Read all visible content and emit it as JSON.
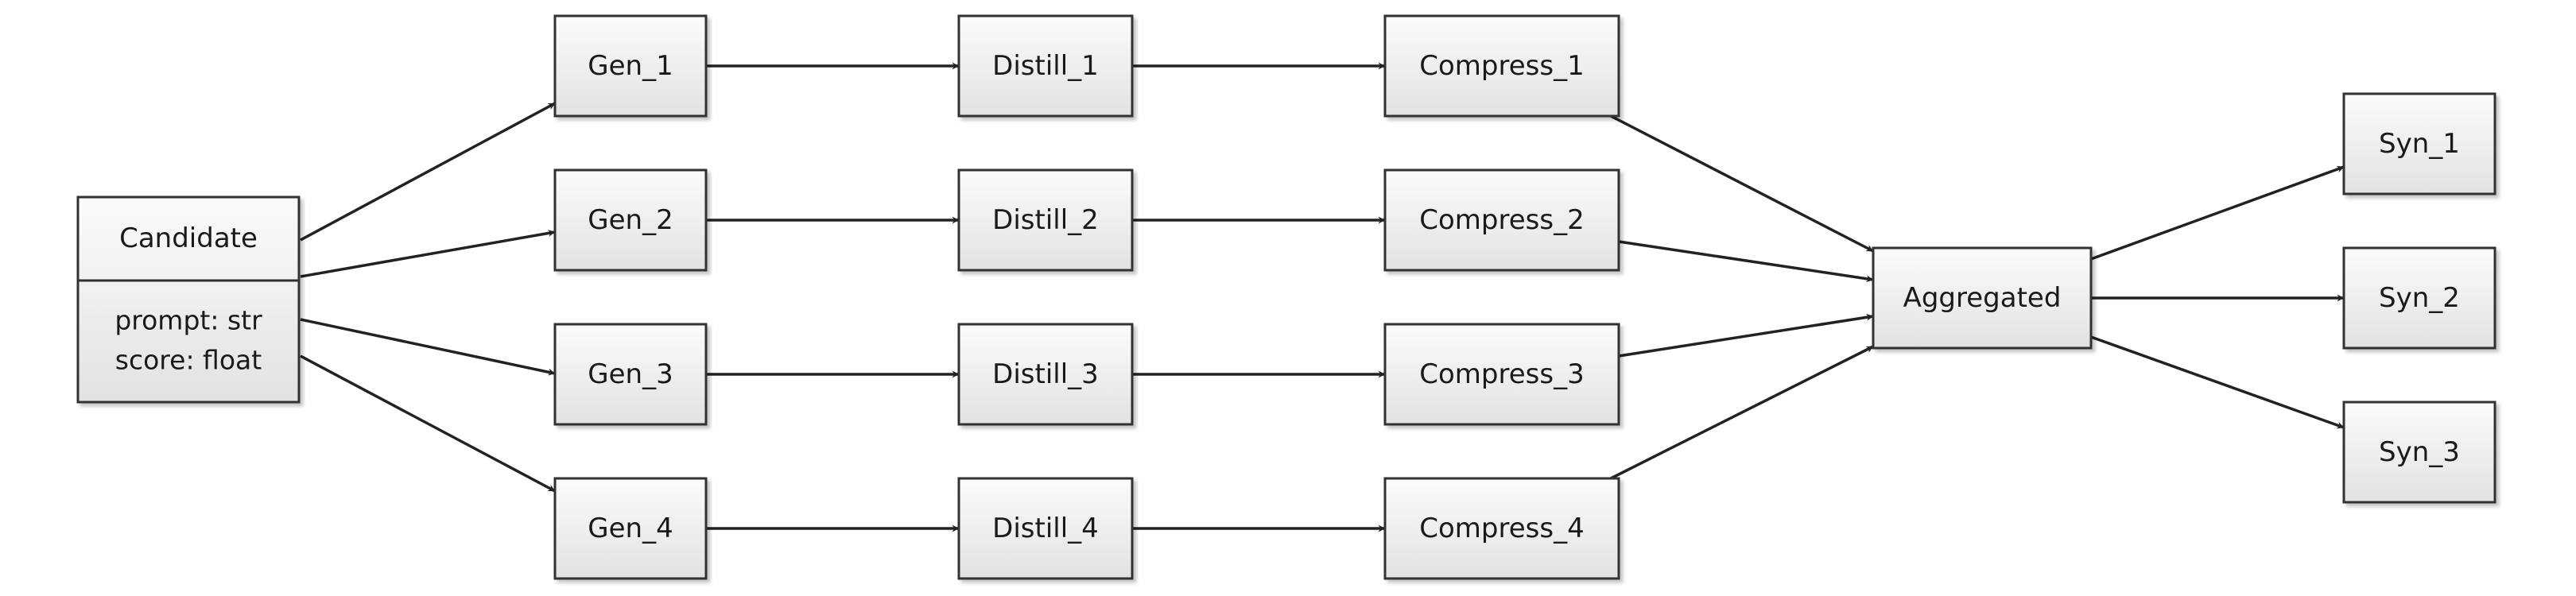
{
  "diagram": {
    "candidate": {
      "title": "Candidate",
      "attributes": [
        "prompt: str",
        "score: float"
      ]
    },
    "nodes": {
      "gen_1": "Gen_1",
      "gen_2": "Gen_2",
      "gen_3": "Gen_3",
      "gen_4": "Gen_4",
      "distill_1": "Distill_1",
      "distill_2": "Distill_2",
      "distill_3": "Distill_3",
      "distill_4": "Distill_4",
      "compress_1": "Compress_1",
      "compress_2": "Compress_2",
      "compress_3": "Compress_3",
      "compress_4": "Compress_4",
      "aggregated": "Aggregated",
      "syn_1": "Syn_1",
      "syn_2": "Syn_2",
      "syn_3": "Syn_3"
    },
    "edges": [
      [
        "candidate",
        "gen_1"
      ],
      [
        "candidate",
        "gen_2"
      ],
      [
        "candidate",
        "gen_3"
      ],
      [
        "candidate",
        "gen_4"
      ],
      [
        "gen_1",
        "distill_1"
      ],
      [
        "gen_2",
        "distill_2"
      ],
      [
        "gen_3",
        "distill_3"
      ],
      [
        "gen_4",
        "distill_4"
      ],
      [
        "distill_1",
        "compress_1"
      ],
      [
        "distill_2",
        "compress_2"
      ],
      [
        "distill_3",
        "compress_3"
      ],
      [
        "distill_4",
        "compress_4"
      ],
      [
        "compress_1",
        "aggregated"
      ],
      [
        "compress_2",
        "aggregated"
      ],
      [
        "compress_3",
        "aggregated"
      ],
      [
        "compress_4",
        "aggregated"
      ],
      [
        "aggregated",
        "syn_1"
      ],
      [
        "aggregated",
        "syn_2"
      ],
      [
        "aggregated",
        "syn_3"
      ]
    ],
    "colors": {
      "node_fill_top": "#fbfbfb",
      "node_fill_bottom": "#e2e2e2",
      "border": "#333333",
      "edge": "#222222"
    }
  }
}
